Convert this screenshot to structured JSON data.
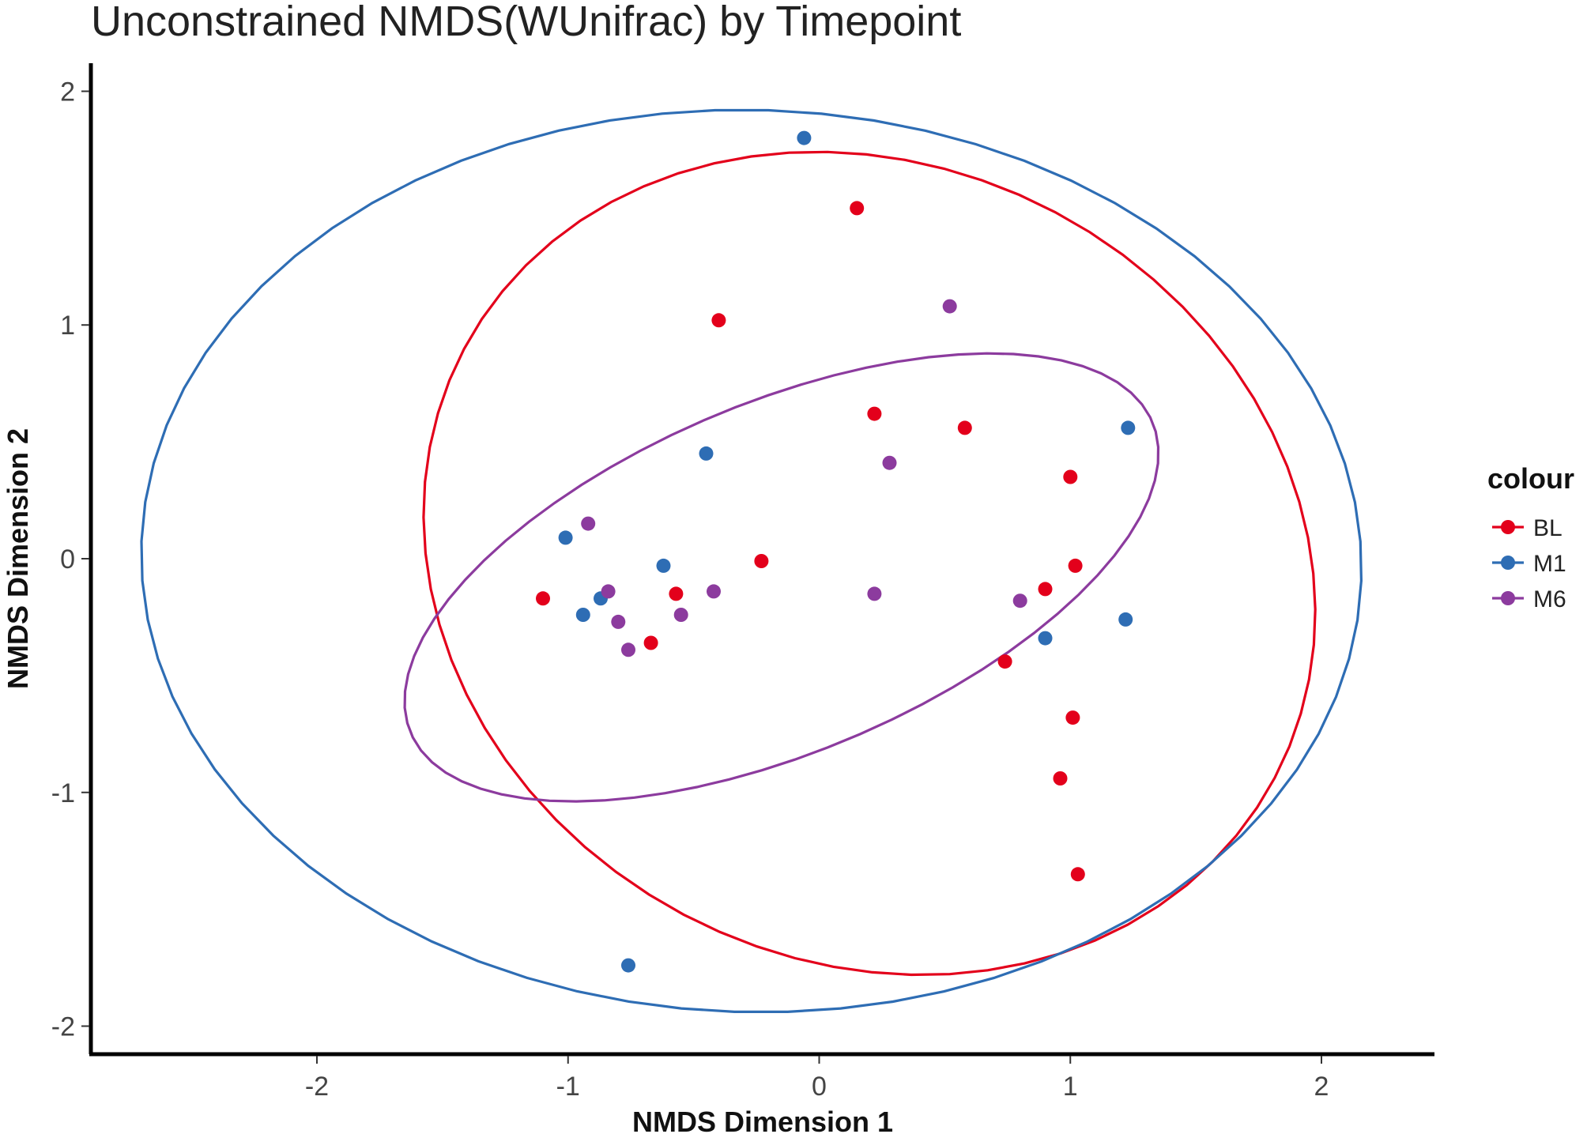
{
  "chart_data": {
    "type": "scatter",
    "title": "Unconstrained NMDS(WUnifrac) by Timepoint",
    "xlabel": "NMDS Dimension 1",
    "ylabel": "NMDS Dimension 2",
    "xlim": [
      -2.9,
      2.45
    ],
    "ylim": [
      -2.12,
      2.12
    ],
    "xticks": [
      -2,
      -1,
      0,
      1,
      2
    ],
    "yticks": [
      -2,
      -1,
      0,
      1,
      2
    ],
    "grid": false,
    "legend": {
      "title": "colour",
      "placement": "right"
    },
    "series": [
      {
        "name": "BL",
        "color": "#e3001b",
        "points": [
          [
            0.15,
            1.5
          ],
          [
            -0.4,
            1.02
          ],
          [
            0.22,
            0.62
          ],
          [
            0.58,
            0.56
          ],
          [
            1.0,
            0.35
          ],
          [
            -0.23,
            -0.01
          ],
          [
            1.02,
            -0.03
          ],
          [
            -1.1,
            -0.17
          ],
          [
            -0.57,
            -0.15
          ],
          [
            0.9,
            -0.13
          ],
          [
            -0.67,
            -0.36
          ],
          [
            0.74,
            -0.44
          ],
          [
            1.01,
            -0.68
          ],
          [
            0.96,
            -0.94
          ],
          [
            1.03,
            -1.35
          ]
        ],
        "ellipse": {
          "cx": 0.2,
          "cy": -0.02,
          "rx": 1.87,
          "ry": 1.66,
          "rotation_deg": -43
        }
      },
      {
        "name": "M1",
        "color": "#2e6db4",
        "points": [
          [
            -0.06,
            1.8
          ],
          [
            1.23,
            0.56
          ],
          [
            -0.45,
            0.45
          ],
          [
            -1.01,
            0.09
          ],
          [
            -0.62,
            -0.03
          ],
          [
            -0.87,
            -0.17
          ],
          [
            -0.94,
            -0.24
          ],
          [
            1.22,
            -0.26
          ],
          [
            0.9,
            -0.34
          ],
          [
            -0.76,
            -1.74
          ]
        ],
        "ellipse": {
          "cx": -0.27,
          "cy": -0.01,
          "rx": 2.43,
          "ry": 1.93,
          "rotation_deg": -2
        }
      },
      {
        "name": "M6",
        "color": "#8c3b9e",
        "points": [
          [
            0.52,
            1.08
          ],
          [
            0.28,
            0.41
          ],
          [
            -0.92,
            0.15
          ],
          [
            -0.84,
            -0.14
          ],
          [
            -0.42,
            -0.14
          ],
          [
            0.22,
            -0.15
          ],
          [
            0.8,
            -0.18
          ],
          [
            -0.8,
            -0.27
          ],
          [
            -0.55,
            -0.24
          ],
          [
            -0.76,
            -0.39
          ]
        ],
        "ellipse": {
          "cx": -0.15,
          "cy": -0.08,
          "rx": 1.62,
          "ry": 0.74,
          "rotation_deg": 25
        }
      }
    ]
  }
}
